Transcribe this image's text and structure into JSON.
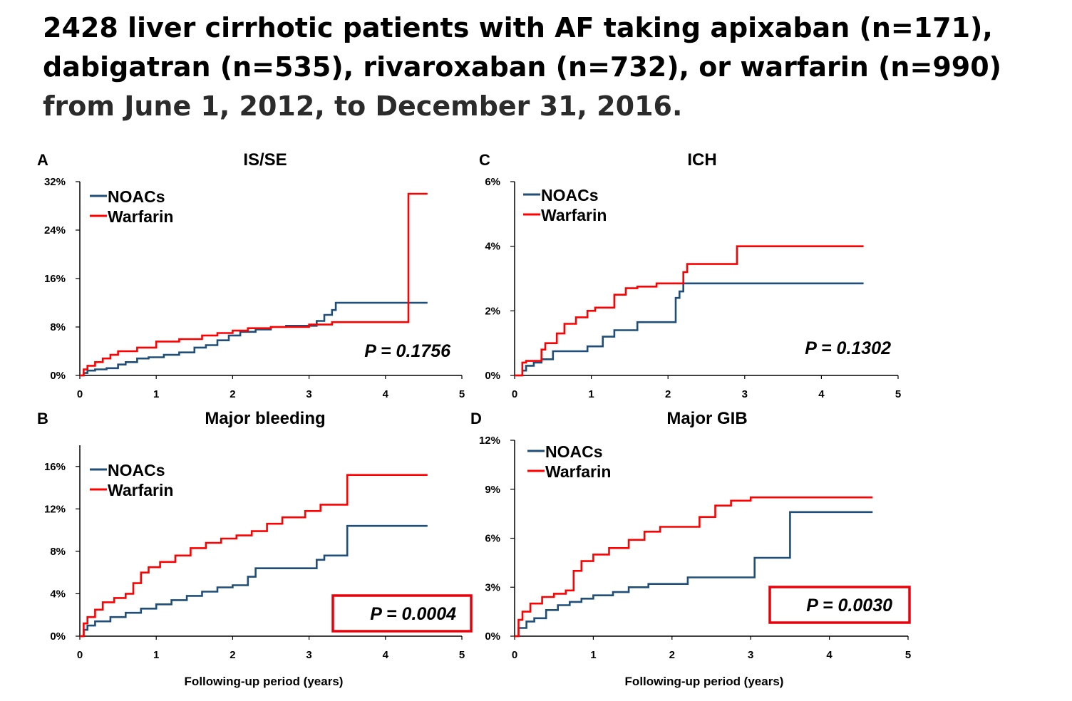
{
  "slide": {
    "title_hl_1": "2428 liver cirrhotic patients with AF taking apixaban (n=171), dabigatran (n=535), rivaroxaban (n=732), or warfarin (n=990)",
    "title_rest": " from June 1, 2012, to December 31, 2016."
  },
  "colors": {
    "noacs": "#1f4e79",
    "warfarin": "#ff0000",
    "highlight_box": "#e8000b"
  },
  "chart_data": [
    {
      "panel": "A",
      "title": "IS/SE",
      "type": "line",
      "step": true,
      "xlim": [
        0,
        5
      ],
      "x_ticks": [
        "0",
        "1",
        "2",
        "3",
        "4",
        "5"
      ],
      "ylim": [
        0,
        32
      ],
      "y_ticks": [
        0,
        8,
        16,
        24,
        32
      ],
      "y_tick_labels": [
        "0%",
        "8%",
        "16%",
        "24%",
        "32%"
      ],
      "xlabel": "",
      "legend": [
        "NOACs",
        "Warfarin"
      ],
      "p_value": "P = 0.1756",
      "p_highlight": false,
      "series": [
        {
          "name": "NOACs",
          "color": "#1f4e79",
          "x": [
            0,
            0.05,
            0.1,
            0.2,
            0.35,
            0.5,
            0.6,
            0.75,
            0.9,
            1.1,
            1.3,
            1.5,
            1.65,
            1.8,
            1.95,
            2.1,
            2.3,
            2.5,
            2.7,
            3.1,
            3.2,
            3.3,
            3.35,
            3.6,
            4.0,
            4.55
          ],
          "y": [
            0,
            0.4,
            0.8,
            1.0,
            1.2,
            1.8,
            2.2,
            2.8,
            3.0,
            3.4,
            3.8,
            4.6,
            5.0,
            5.8,
            6.6,
            7.2,
            7.6,
            8.0,
            8.2,
            9.0,
            10.0,
            10.8,
            12.0,
            12.0,
            12.0,
            12.0
          ]
        },
        {
          "name": "Warfarin",
          "color": "#ff0000",
          "x": [
            0,
            0.05,
            0.1,
            0.2,
            0.3,
            0.4,
            0.5,
            0.75,
            1.0,
            1.3,
            1.6,
            1.8,
            2.0,
            2.2,
            2.5,
            2.8,
            3.0,
            3.3,
            3.6,
            4.2,
            4.3,
            4.55
          ],
          "y": [
            0,
            1.0,
            1.6,
            2.2,
            2.8,
            3.4,
            4.0,
            4.6,
            5.6,
            6.0,
            6.6,
            7.0,
            7.4,
            7.8,
            8.0,
            8.0,
            8.4,
            8.8,
            8.8,
            8.8,
            30.0,
            30.0
          ]
        }
      ]
    },
    {
      "panel": "C",
      "title": "ICH",
      "type": "line",
      "step": true,
      "xlim": [
        0,
        5
      ],
      "x_ticks": [
        "0",
        "1",
        "2",
        "3",
        "4",
        "5"
      ],
      "ylim": [
        0,
        6
      ],
      "y_ticks": [
        0,
        2,
        4,
        6
      ],
      "y_tick_labels": [
        "0%",
        "2%",
        "4%",
        "6%"
      ],
      "xlabel": "",
      "legend": [
        "NOACs",
        "Warfarin"
      ],
      "p_value": "P = 0.1302",
      "p_highlight": false,
      "series": [
        {
          "name": "NOACs",
          "color": "#1f4e79",
          "x": [
            0,
            0.1,
            0.15,
            0.25,
            0.35,
            0.5,
            0.65,
            0.95,
            1.15,
            1.3,
            1.6,
            1.9,
            2.1,
            2.15,
            2.2,
            2.25,
            3.0,
            4.55
          ],
          "y": [
            0,
            0.15,
            0.3,
            0.4,
            0.5,
            0.75,
            0.75,
            0.9,
            1.2,
            1.4,
            1.65,
            1.65,
            2.4,
            2.6,
            2.85,
            2.85,
            2.85,
            2.85
          ]
        },
        {
          "name": "Warfarin",
          "color": "#ff0000",
          "x": [
            0,
            0.1,
            0.15,
            0.35,
            0.4,
            0.55,
            0.65,
            0.8,
            0.95,
            1.05,
            1.3,
            1.45,
            1.6,
            1.85,
            2.2,
            2.25,
            2.9,
            3.0,
            4.55
          ],
          "y": [
            0,
            0.4,
            0.45,
            0.8,
            1.0,
            1.3,
            1.6,
            1.8,
            2.0,
            2.1,
            2.5,
            2.7,
            2.75,
            2.85,
            3.2,
            3.45,
            4.0,
            4.0,
            4.0
          ]
        }
      ]
    },
    {
      "panel": "B",
      "title": "Major bleeding",
      "type": "line",
      "step": true,
      "xlim": [
        0,
        5
      ],
      "x_ticks": [
        "0",
        "1",
        "2",
        "3",
        "4",
        "5"
      ],
      "ylim": [
        0,
        18
      ],
      "y_ticks": [
        0,
        4,
        8,
        12,
        16
      ],
      "y_tick_labels": [
        "0%",
        "4%",
        "8%",
        "12%",
        "16%"
      ],
      "xlabel": "Following-up period (years)",
      "legend": [
        "NOACs",
        "Warfarin"
      ],
      "p_value": "P = 0.0004",
      "p_highlight": true,
      "series": [
        {
          "name": "NOACs",
          "color": "#1f4e79",
          "x": [
            0,
            0.05,
            0.1,
            0.2,
            0.4,
            0.6,
            0.8,
            1.0,
            1.2,
            1.4,
            1.6,
            1.8,
            2.0,
            2.2,
            2.3,
            2.7,
            3.1,
            3.2,
            3.5,
            4.55
          ],
          "y": [
            0,
            0.6,
            1.0,
            1.4,
            1.8,
            2.2,
            2.6,
            3.0,
            3.4,
            3.8,
            4.2,
            4.6,
            4.8,
            5.6,
            6.4,
            6.4,
            7.2,
            7.6,
            10.4,
            10.4
          ]
        },
        {
          "name": "Warfarin",
          "color": "#ff0000",
          "x": [
            0,
            0.05,
            0.1,
            0.2,
            0.3,
            0.45,
            0.6,
            0.7,
            0.8,
            0.9,
            1.05,
            1.25,
            1.45,
            1.65,
            1.85,
            2.05,
            2.25,
            2.45,
            2.65,
            2.95,
            3.15,
            3.45,
            3.5,
            4.55
          ],
          "y": [
            0,
            1.2,
            1.8,
            2.5,
            3.2,
            3.6,
            4.0,
            5.0,
            6.0,
            6.5,
            7.0,
            7.6,
            8.3,
            8.8,
            9.2,
            9.5,
            9.9,
            10.6,
            11.2,
            11.8,
            12.4,
            12.4,
            15.2,
            15.2
          ]
        }
      ]
    },
    {
      "panel": "D",
      "title": "Major GIB",
      "type": "line",
      "step": true,
      "xlim": [
        0,
        5
      ],
      "x_ticks": [
        "0",
        "1",
        "2",
        "3",
        "4",
        "5"
      ],
      "ylim": [
        0,
        12
      ],
      "y_ticks": [
        0,
        3,
        6,
        9,
        12
      ],
      "y_tick_labels": [
        "0%",
        "3%",
        "6%",
        "9%",
        "12%"
      ],
      "xlabel": "Following-up period (years)",
      "legend": [
        "NOACs",
        "Warfarin"
      ],
      "p_value": "P = 0.0030",
      "p_highlight": true,
      "series": [
        {
          "name": "NOACs",
          "color": "#1f4e79",
          "x": [
            0,
            0.05,
            0.15,
            0.25,
            0.4,
            0.55,
            0.7,
            0.85,
            1.0,
            1.25,
            1.45,
            1.7,
            2.2,
            2.5,
            2.9,
            3.05,
            3.35,
            3.5,
            4.55
          ],
          "y": [
            0,
            0.5,
            0.9,
            1.1,
            1.6,
            1.9,
            2.1,
            2.3,
            2.5,
            2.7,
            3.0,
            3.2,
            3.6,
            3.6,
            3.6,
            4.8,
            4.8,
            7.6,
            7.6
          ]
        },
        {
          "name": "Warfarin",
          "color": "#ff0000",
          "x": [
            0,
            0.05,
            0.1,
            0.2,
            0.35,
            0.5,
            0.65,
            0.75,
            0.85,
            1.0,
            1.2,
            1.45,
            1.65,
            1.85,
            2.05,
            2.35,
            2.55,
            2.75,
            3.0,
            3.2,
            4.55
          ],
          "y": [
            0,
            1.0,
            1.5,
            2.0,
            2.4,
            2.6,
            2.8,
            4.0,
            4.6,
            5.0,
            5.4,
            5.9,
            6.4,
            6.7,
            6.7,
            7.3,
            8.0,
            8.3,
            8.5,
            8.5,
            8.5
          ]
        }
      ]
    }
  ]
}
